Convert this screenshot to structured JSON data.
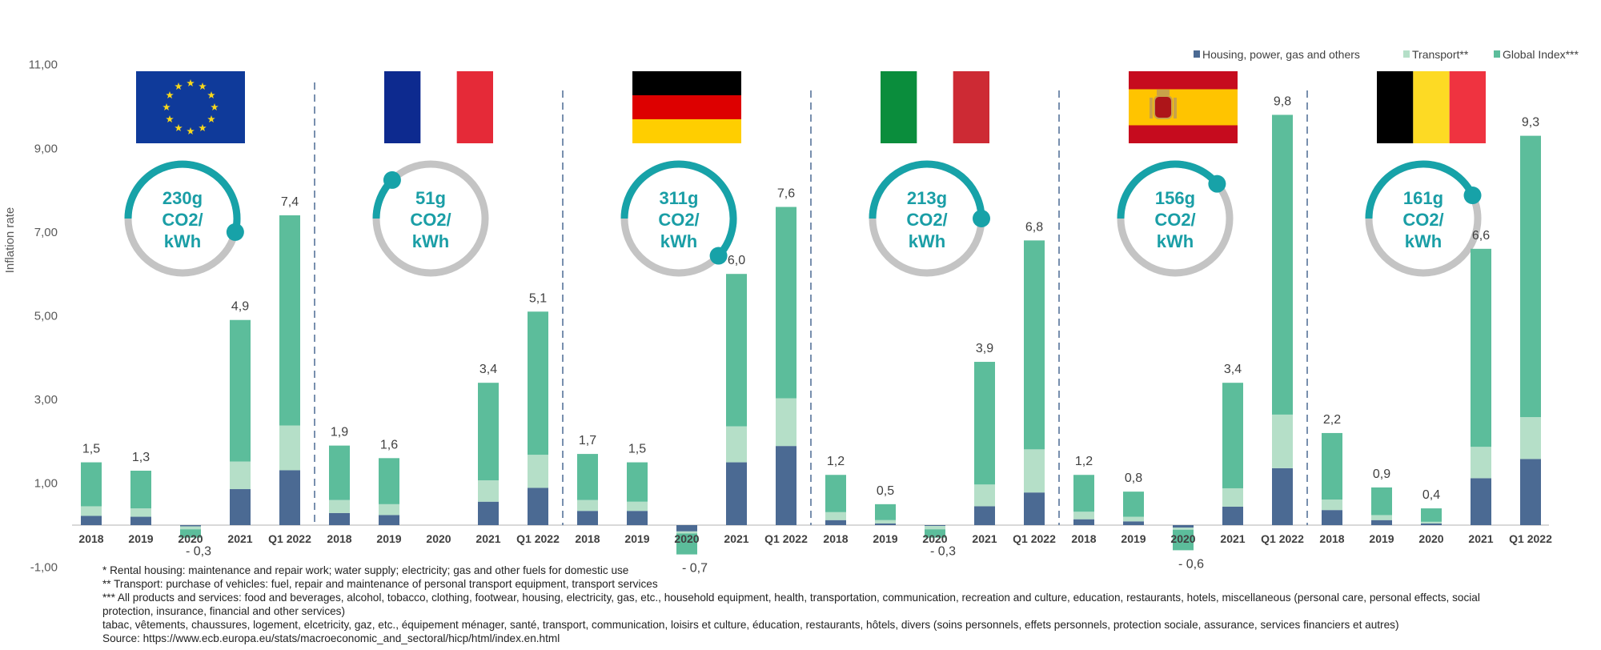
{
  "chart_data": {
    "type": "bar",
    "stacked": true,
    "ylabel": "Inflation rate",
    "ylim": [
      -1,
      11
    ],
    "yticks": [
      "11,00",
      "9,00",
      "7,00",
      "5,00",
      "3,00",
      "1,00",
      "-1,00"
    ],
    "ytick_values": [
      11,
      9,
      7,
      5,
      3,
      1,
      -1
    ],
    "legend_position": "top-right",
    "legend": [
      {
        "name": "Housing, power, gas and others",
        "color": "#4b6a93"
      },
      {
        "name": "Transport**",
        "color": "#b5dfc8"
      },
      {
        "name": "Global Index***",
        "color": "#5cbd9b"
      }
    ],
    "categories": [
      "2018",
      "2019",
      "2020",
      "2021",
      "Q1 2022"
    ],
    "groups": [
      {
        "country": "EU",
        "flag": "eu-flag",
        "co2": [
          "230g",
          "CO2/",
          "kWh"
        ],
        "co2_value": 230,
        "gauge_fill": 0.54,
        "housing": [
          0.22,
          0.2,
          -0.03,
          0.86,
          1.31
        ],
        "transport": [
          0.23,
          0.2,
          -0.07,
          0.66,
          1.07
        ],
        "total": [
          1.5,
          1.3,
          -0.3,
          4.9,
          7.4
        ],
        "labels": [
          "1,5",
          "1,3",
          "- 0,3",
          "4,9",
          "7,4"
        ]
      },
      {
        "country": "France",
        "flag": "france-flag",
        "co2": [
          "51g",
          "CO2/",
          "kWh"
        ],
        "co2_value": 51,
        "gauge_fill": 0.125,
        "housing": [
          0.29,
          0.24,
          0,
          0.56,
          0.89
        ],
        "transport": [
          0.31,
          0.26,
          0,
          0.51,
          0.79
        ],
        "total": [
          1.9,
          1.6,
          0,
          3.4,
          5.1
        ],
        "labels": [
          "1,9",
          "1,6",
          "",
          "3,4",
          "5,1"
        ]
      },
      {
        "country": "Germany",
        "flag": "germany-flag",
        "co2": [
          "311g",
          "CO2/",
          "kWh"
        ],
        "co2_value": 311,
        "gauge_fill": 0.62,
        "housing": [
          0.34,
          0.34,
          -0.15,
          1.5,
          1.89
        ],
        "transport": [
          0.26,
          0.22,
          -0.05,
          0.86,
          1.14
        ],
        "total": [
          1.7,
          1.5,
          -0.7,
          6.0,
          7.6
        ],
        "labels": [
          "1,7",
          "1,5",
          "- 0,7",
          "6,0",
          "7,6"
        ]
      },
      {
        "country": "Italy",
        "flag": "italy-flag",
        "co2": [
          "213g",
          "CO2/",
          "kWh"
        ],
        "co2_value": 213,
        "gauge_fill": 0.5,
        "housing": [
          0.12,
          0.04,
          -0.02,
          0.45,
          0.78
        ],
        "transport": [
          0.19,
          0.08,
          -0.08,
          0.52,
          1.03
        ],
        "total": [
          1.2,
          0.5,
          -0.3,
          3.9,
          6.8
        ],
        "labels": [
          "1,2",
          "0,5",
          "- 0,3",
          "3,9",
          "6,8"
        ]
      },
      {
        "country": "Spain",
        "flag": "spain-flag",
        "co2": [
          "156g",
          "CO2/",
          "kWh"
        ],
        "co2_value": 156,
        "gauge_fill": 0.39,
        "housing": [
          0.14,
          0.09,
          -0.06,
          0.44,
          1.36
        ],
        "transport": [
          0.18,
          0.11,
          -0.05,
          0.44,
          1.28
        ],
        "total": [
          1.2,
          0.8,
          -0.6,
          3.4,
          9.8
        ],
        "labels": [
          "1,2",
          "0,8",
          "- 0,6",
          "3,4",
          "9,8"
        ]
      },
      {
        "country": "Belgium",
        "flag": "belgium-flag",
        "co2": [
          "161g",
          "CO2/",
          "kWh"
        ],
        "co2_value": 161,
        "gauge_fill": 0.43,
        "housing": [
          0.36,
          0.12,
          0.04,
          1.12,
          1.58
        ],
        "transport": [
          0.25,
          0.12,
          0.04,
          0.75,
          1.0
        ],
        "total": [
          2.2,
          0.9,
          0.4,
          6.6,
          9.3
        ],
        "labels": [
          "2,2",
          "0,9",
          "0,4",
          "6,6",
          "9,3"
        ]
      }
    ],
    "colors": {
      "gauge_arc": "#17a2a8",
      "gauge_track": "#c4c4c4",
      "divider": "#4b6a93",
      "baseline": "#d9d9d9"
    }
  },
  "footnotes": [
    "* Rental housing: maintenance and repair work; water supply; electricity; gas and other fuels for domestic use",
    "** Transport: purchase of vehicles: fuel, repair and maintenance of personal transport equipment, transport services",
    "*** All products and services: food and beverages, alcohol, tobacco, clothing, footwear, housing, electricity, gas, etc., household equipment, health, transportation, communication, recreation and culture, education, restaurants, hotels, miscellaneous (personal care, personal effects, social",
    "protection, insurance, financial and other services)",
    "tabac, vêtements, chaussures, logement, elcetricity, gaz, etc., équipement ménager, santé, transport, communication, loisirs et culture, éducation, restaurants, hôtels, divers (soins personnels, effets personnels, protection sociale, assurance, services financiers et autres)",
    "Source: https://www.ecb.europa.eu/stats/macroeconomic_and_sectoral/hicp/html/index.en.html"
  ]
}
